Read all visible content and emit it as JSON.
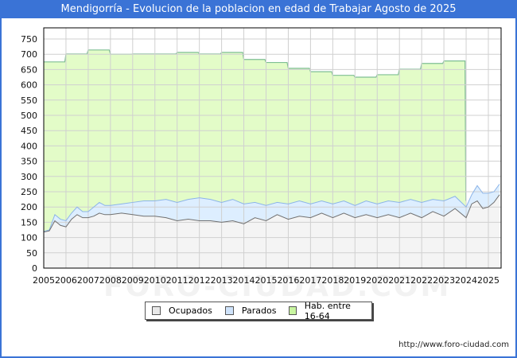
{
  "title": "Mendigorría - Evolucion de la poblacion en edad de Trabajar Agosto de 2025",
  "footer_url": "http://www.foro-ciudad.com",
  "watermark": "FORO-CIUDAD.COM",
  "colors": {
    "title_bg": "#3a73d6",
    "hab_fill": "#e3fcc8",
    "hab_line": "#7fbf94",
    "parados_fill": "#ddeeff",
    "parados_line": "#8cb4e8",
    "ocupados_fill": "#f4f4f4",
    "ocupados_line": "#707070",
    "grid": "#d0d0d0"
  },
  "legend": {
    "items": [
      {
        "label": "Ocupados",
        "color": "#e8e8e8"
      },
      {
        "label": "Parados",
        "color": "#cfe3fb"
      },
      {
        "label": "Hab. entre 16-64",
        "color": "#c8f5a0"
      }
    ]
  },
  "chart_data": {
    "type": "area",
    "title": "Mendigorría - Evolucion de la poblacion en edad de Trabajar Agosto de 2025",
    "xlabel": "",
    "ylabel": "",
    "ylim": [
      0,
      750
    ],
    "yticks": [
      0,
      50,
      100,
      150,
      200,
      250,
      300,
      350,
      400,
      450,
      500,
      550,
      600,
      650,
      700,
      750
    ],
    "xticks": [
      "2005",
      "2006",
      "2007",
      "2008",
      "2009",
      "2010",
      "2011",
      "2012",
      "2013",
      "2014",
      "2015",
      "2016",
      "2017",
      "2018",
      "2019",
      "2020",
      "2021",
      "2022",
      "2023",
      "2024",
      "2025"
    ],
    "grid": true,
    "legend_position": "bottom",
    "series": [
      {
        "name": "Hab. entre 16-64",
        "type": "step",
        "x": [
          2005,
          2006,
          2007,
          2008,
          2009,
          2010,
          2011,
          2012,
          2013,
          2014,
          2015,
          2016,
          2017,
          2018,
          2019,
          2020,
          2021,
          2022,
          2023,
          2024
        ],
        "values": [
          675,
          701,
          714,
          700,
          701,
          701,
          706,
          701,
          706,
          683,
          673,
          654,
          643,
          631,
          625,
          633,
          651,
          670,
          678,
          678
        ]
      },
      {
        "name": "Parados (top = Ocupados + Parados)",
        "x": [
          2005,
          2005.25,
          2005.5,
          2005.75,
          2006,
          2006.25,
          2006.5,
          2006.75,
          2007,
          2007.25,
          2007.5,
          2007.75,
          2008,
          2008.5,
          2009,
          2009.5,
          2010,
          2010.5,
          2011,
          2011.5,
          2012,
          2012.5,
          2013,
          2013.5,
          2014,
          2014.5,
          2015,
          2015.5,
          2016,
          2016.5,
          2017,
          2017.5,
          2018,
          2018.5,
          2019,
          2019.5,
          2020,
          2020.5,
          2021,
          2021.5,
          2022,
          2022.5,
          2023,
          2023.5,
          2024,
          2024.25,
          2024.5,
          2024.75,
          2025,
          2025.25,
          2025.5
        ],
        "values": [
          120,
          125,
          175,
          160,
          155,
          180,
          200,
          185,
          185,
          200,
          215,
          205,
          205,
          210,
          215,
          220,
          220,
          225,
          215,
          225,
          230,
          225,
          215,
          225,
          210,
          215,
          205,
          215,
          210,
          220,
          210,
          220,
          210,
          220,
          205,
          220,
          210,
          220,
          215,
          225,
          215,
          225,
          220,
          235,
          200,
          240,
          270,
          245,
          245,
          250,
          275
        ]
      },
      {
        "name": "Ocupados",
        "x": [
          2005,
          2005.25,
          2005.5,
          2005.75,
          2006,
          2006.25,
          2006.5,
          2006.75,
          2007,
          2007.25,
          2007.5,
          2007.75,
          2008,
          2008.5,
          2009,
          2009.5,
          2010,
          2010.5,
          2011,
          2011.5,
          2012,
          2012.5,
          2013,
          2013.5,
          2014,
          2014.5,
          2015,
          2015.5,
          2016,
          2016.5,
          2017,
          2017.5,
          2018,
          2018.5,
          2019,
          2019.5,
          2020,
          2020.5,
          2021,
          2021.5,
          2022,
          2022.5,
          2023,
          2023.5,
          2024,
          2024.25,
          2024.5,
          2024.75,
          2025,
          2025.25,
          2025.5
        ],
        "values": [
          118,
          122,
          155,
          140,
          135,
          160,
          175,
          165,
          165,
          170,
          180,
          175,
          175,
          180,
          175,
          170,
          170,
          165,
          155,
          160,
          155,
          155,
          150,
          155,
          145,
          165,
          155,
          175,
          160,
          170,
          165,
          180,
          165,
          180,
          165,
          175,
          165,
          175,
          165,
          180,
          165,
          185,
          170,
          195,
          165,
          210,
          220,
          195,
          200,
          215,
          240
        ]
      }
    ]
  }
}
